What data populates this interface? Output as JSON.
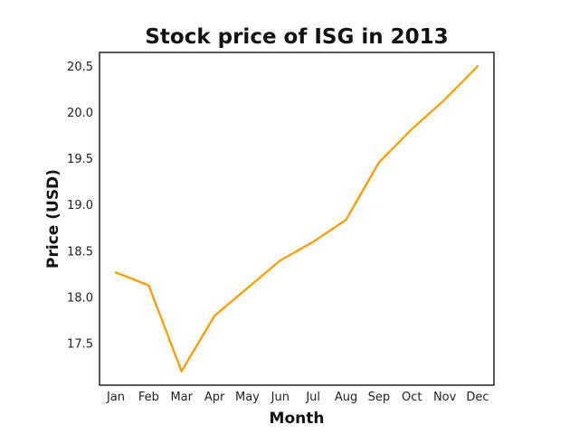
{
  "chart_data": {
    "type": "line",
    "title": "Stock price of ISG in 2013",
    "xlabel": "Month",
    "ylabel": "Price (USD)",
    "categories": [
      "Jan",
      "Feb",
      "Mar",
      "Apr",
      "May",
      "Jun",
      "Jul",
      "Aug",
      "Sep",
      "Oct",
      "Nov",
      "Dec"
    ],
    "series": [
      {
        "values": [
          18.27,
          18.13,
          17.2,
          17.8,
          18.1,
          18.4,
          18.6,
          18.84,
          19.46,
          19.82,
          20.14,
          20.5
        ],
        "color": "#f5a00c"
      }
    ],
    "yticks": [
      "17.5",
      "18.0",
      "18.5",
      "19.0",
      "19.5",
      "20.0",
      "20.5"
    ],
    "ylim": [
      17.05,
      20.65
    ],
    "grid": false,
    "legend": "none"
  }
}
